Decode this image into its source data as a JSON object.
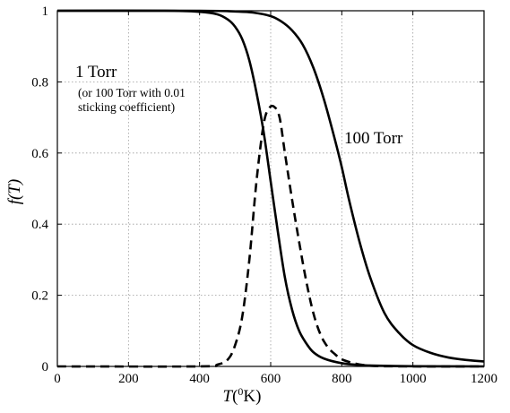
{
  "chart_data": {
    "type": "line",
    "xlabel": {
      "var": "T",
      "sup": "0",
      "unit": "K)",
      "open": "("
    },
    "ylabel": "f(T)",
    "xlim": [
      0,
      1200
    ],
    "ylim": [
      0,
      1
    ],
    "xticks": [
      "0",
      "200",
      "400",
      "600",
      "800",
      "1000",
      "1200"
    ],
    "yticks": [
      "0",
      "0.2",
      "0.4",
      "0.6",
      "0.8",
      "1"
    ],
    "grid": true,
    "series": [
      {
        "style": "solid",
        "color": "#000000",
        "x": [
          0,
          300,
          400,
          450,
          480,
          500,
          520,
          540,
          560,
          580,
          600,
          620,
          640,
          660,
          680,
          700,
          720,
          750,
          800,
          850,
          900,
          1000,
          1200
        ],
        "y": [
          1.0,
          1.0,
          0.997,
          0.99,
          0.975,
          0.955,
          0.92,
          0.86,
          0.77,
          0.66,
          0.52,
          0.38,
          0.25,
          0.16,
          0.1,
          0.065,
          0.04,
          0.022,
          0.009,
          0.004,
          0.002,
          0.0005,
          0.0
        ]
      },
      {
        "style": "solid",
        "color": "#000000",
        "x": [
          0,
          400,
          500,
          550,
          600,
          630,
          660,
          690,
          720,
          750,
          780,
          800,
          820,
          850,
          880,
          920,
          960,
          1000,
          1050,
          1100,
          1150,
          1200
        ],
        "y": [
          1.0,
          1.0,
          0.998,
          0.995,
          0.985,
          0.97,
          0.945,
          0.905,
          0.84,
          0.75,
          0.64,
          0.56,
          0.47,
          0.35,
          0.25,
          0.15,
          0.095,
          0.06,
          0.038,
          0.025,
          0.018,
          0.014
        ]
      },
      {
        "style": "dashed",
        "color": "#000000",
        "x": [
          0,
          400,
          450,
          480,
          500,
          520,
          540,
          560,
          580,
          595,
          610,
          625,
          640,
          660,
          680,
          700,
          720,
          740,
          760,
          780,
          800,
          830,
          860,
          900,
          1000,
          1200
        ],
        "y": [
          0.0,
          0.0,
          0.005,
          0.02,
          0.06,
          0.14,
          0.3,
          0.52,
          0.68,
          0.725,
          0.73,
          0.7,
          0.6,
          0.47,
          0.35,
          0.24,
          0.15,
          0.09,
          0.055,
          0.035,
          0.02,
          0.01,
          0.004,
          0.001,
          0.0,
          0.0
        ]
      }
    ],
    "annotations": {
      "one_torr": "1 Torr",
      "one_torr_note_1": "(or 100 Torr with 0.01",
      "one_torr_note_2": "sticking coefficient)",
      "hundred_torr": "100 Torr"
    }
  }
}
